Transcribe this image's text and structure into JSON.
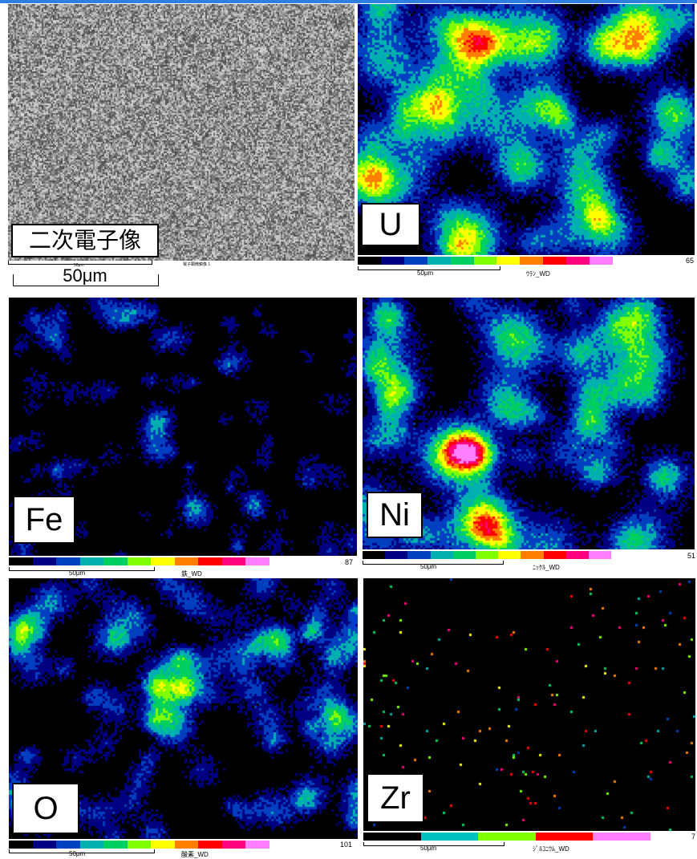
{
  "panels": {
    "sem": {
      "label": "二次電子像",
      "scale_small": "50μm",
      "caption": "電子顕微鏡像 1",
      "scale_big": "50μm"
    },
    "u": {
      "label": "U",
      "scale": "50μm",
      "caption": "ｳﾗﾝ_WD",
      "max": "65"
    },
    "fe": {
      "label": "Fe",
      "scale": "50μm",
      "caption": "鉄_WD",
      "max": "87"
    },
    "ni": {
      "label": "Ni",
      "scale": "50μm",
      "caption": "ﾆｯｹﾙ_WD",
      "max": "51"
    },
    "o": {
      "label": "O",
      "scale": "50μm",
      "caption": "酸素_WD",
      "max": "101"
    },
    "zr": {
      "label": "Zr",
      "scale": "50μm",
      "caption": "ｼﾞﾙｺﾆｳﾑ_WD",
      "max": "7"
    }
  },
  "colorbar_colors": [
    "#000000",
    "#000080",
    "#0040c0",
    "#00b0b0",
    "#00d060",
    "#80ff00",
    "#ffff00",
    "#ff8000",
    "#ff0000",
    "#ff0080",
    "#ff80ff"
  ],
  "zr_colorbar_colors": [
    "#000000",
    "#00c0c0",
    "#80ff00",
    "#ff0000",
    "#ff80ff"
  ]
}
